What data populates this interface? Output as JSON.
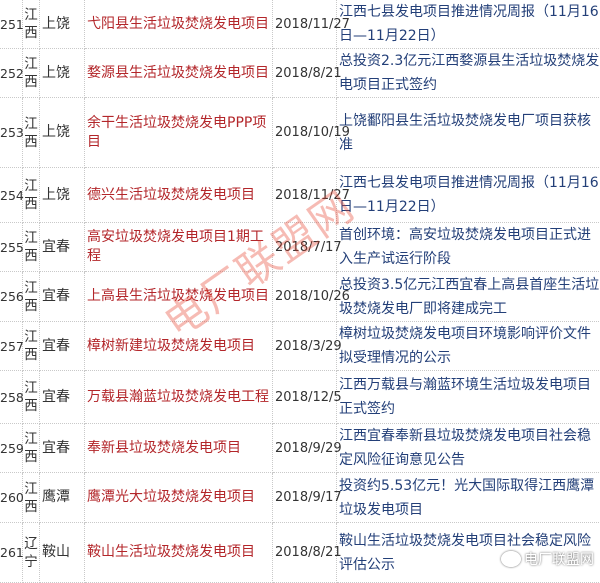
{
  "rows": [
    {
      "no": "251",
      "province": "江西",
      "city": "上饶",
      "project": "弋阳县生活垃圾焚烧发电项目",
      "date": "2018/11/27",
      "news": "江西七县发电项目推进情况周报（11月16日—11月22日）"
    },
    {
      "no": "252",
      "province": "江西",
      "city": "上饶",
      "project": "婺源县生活垃圾焚烧发电项目",
      "date": "2018/8/21",
      "news": "总投资2.3亿元江西婺源县生活垃圾焚烧发电项目正式签约"
    },
    {
      "no": "253",
      "province": "江西",
      "city": "上饶",
      "project": "余干生活垃圾焚烧发电PPP项目",
      "date": "2018/10/19",
      "news": "上饶鄱阳县生活垃圾焚烧发电厂项目获核准"
    },
    {
      "no": "254",
      "province": "江西",
      "city": "上饶",
      "project": "德兴生活垃圾焚烧发电项目",
      "date": "2018/11/27",
      "news": "江西七县发电项目推进情况周报（11月16日—11月22日）"
    },
    {
      "no": "255",
      "province": "江西",
      "city": "宜春",
      "project": "高安垃圾焚烧发电项目1期工程",
      "date": "2018/7/17",
      "news": "首创环境：高安垃圾焚烧发电项目正式进入生产试运行阶段"
    },
    {
      "no": "256",
      "province": "江西",
      "city": "宜春",
      "project": "上高县生活垃圾焚烧发电项目",
      "date": "2018/10/26",
      "news": "总投资3.5亿元江西宜春上高县首座生活垃圾焚烧发电厂即将建成完工"
    },
    {
      "no": "257",
      "province": "江西",
      "city": "宜春",
      "project": "樟树新建垃圾焚烧发电项目",
      "date": "2018/3/29",
      "news": "樟树垃圾焚烧发电项目环境影响评价文件拟受理情况的公示"
    },
    {
      "no": "258",
      "province": "江西",
      "city": "宜春",
      "project": "万载县瀚蓝垃圾焚烧发电工程",
      "date": "2018/12/5",
      "news": "江西万载县与瀚蓝环境生活垃圾发电项目正式签约"
    },
    {
      "no": "259",
      "province": "江西",
      "city": "宜春",
      "project": "奉新县垃圾焚烧发电项目",
      "date": "2018/9/29",
      "news": "江西宜春奉新县垃圾焚烧发电项目社会稳定风险征询意见公告"
    },
    {
      "no": "260",
      "province": "江西",
      "city": "鹰潭",
      "project": "鹰潭光大垃圾焚烧发电项目",
      "date": "2018/9/17",
      "news": "投资约5.53亿元！光大国际取得江西鹰潭垃圾发电项目"
    },
    {
      "no": "261",
      "province": "辽宁",
      "city": "鞍山",
      "project": "鞍山生活垃圾焚烧发电项目",
      "date": "2018/8/21",
      "news": "鞍山生活垃圾焚烧发电项目社会稳定风险评估公示"
    }
  ],
  "watermark": "电厂联盟网",
  "logo_text": "电厂联盟网",
  "colors": {
    "project": "#b3262a",
    "news": "#233f78"
  }
}
